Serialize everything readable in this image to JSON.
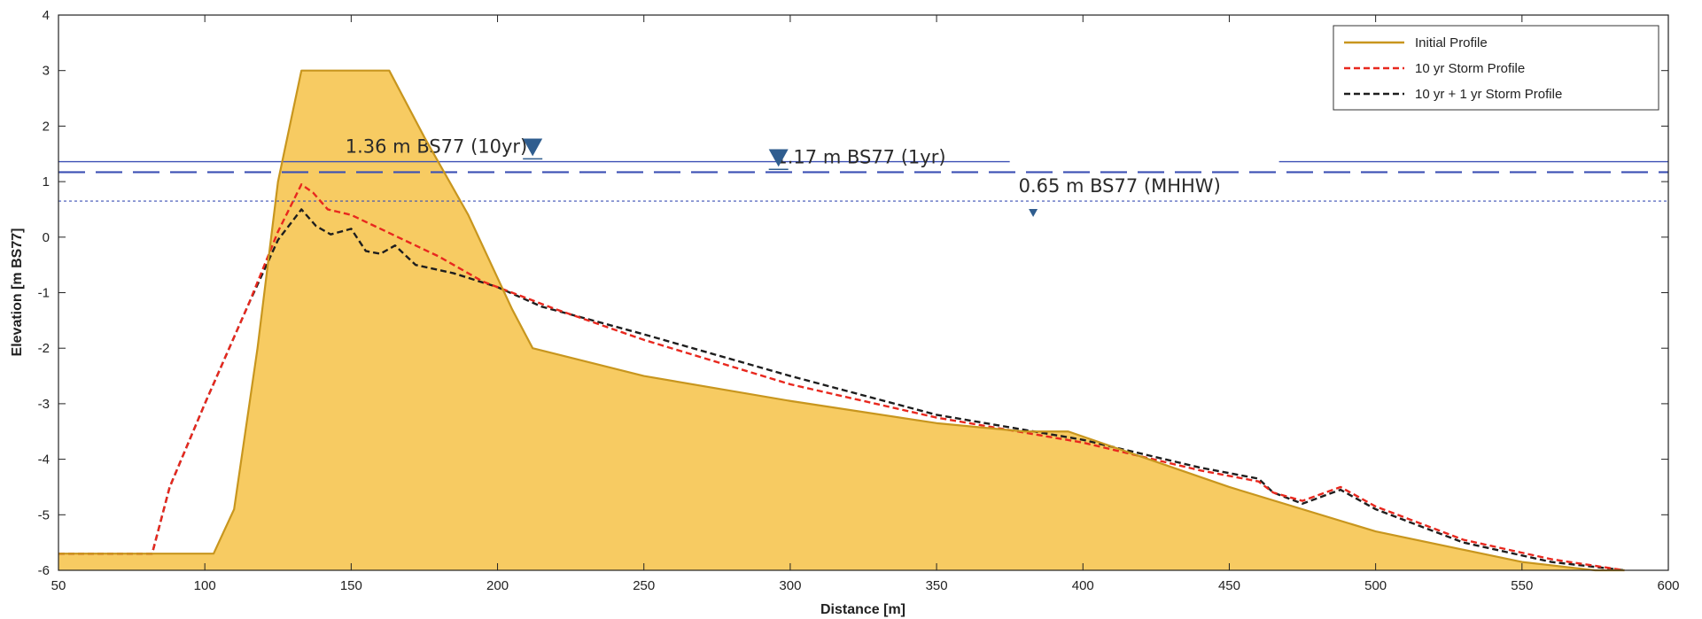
{
  "chart_data": {
    "type": "area",
    "xlabel": "Distance [m]",
    "ylabel": "Elevation [m BS77]",
    "xlim": [
      50,
      600
    ],
    "ylim": [
      -6,
      4
    ],
    "xticks": [
      50,
      100,
      150,
      200,
      250,
      300,
      350,
      400,
      450,
      500,
      550,
      600
    ],
    "yticks": [
      -6,
      -5,
      -4,
      -3,
      -2,
      -1,
      0,
      1,
      2,
      3,
      4
    ],
    "grid": false,
    "legend_position": "top-right",
    "colors": {
      "fill": "#f7c85a",
      "initial": "#c8961e",
      "storm10": "#e8281e",
      "storm11": "#1e1e1e",
      "level": "#3c50b4",
      "marker": "#2f5d8f"
    },
    "series": [
      {
        "name": "Initial Profile",
        "style": "solid",
        "x": [
          50,
          103,
          110,
          118,
          125,
          133,
          163,
          175,
          190,
          205,
          212,
          250,
          300,
          350,
          380,
          395,
          450,
          500,
          550,
          575,
          585
        ],
        "y": [
          -5.7,
          -5.7,
          -4.9,
          -2.0,
          1.0,
          3.0,
          3.0,
          1.8,
          0.4,
          -1.3,
          -2.0,
          -2.5,
          -2.95,
          -3.35,
          -3.5,
          -3.5,
          -4.5,
          -5.3,
          -5.85,
          -6.0,
          -6.0
        ]
      },
      {
        "name": "10 yr Storm Profile",
        "style": "dashed",
        "x": [
          50,
          82,
          88,
          100,
          115,
          125,
          133,
          137,
          142,
          150,
          158,
          168,
          180,
          195,
          220,
          250,
          300,
          350,
          400,
          440,
          460,
          465,
          475,
          488,
          500,
          530,
          560,
          585
        ],
        "y": [
          -5.7,
          -5.7,
          -4.5,
          -3.0,
          -1.2,
          0.1,
          0.95,
          0.8,
          0.5,
          0.4,
          0.2,
          -0.05,
          -0.35,
          -0.8,
          -1.3,
          -1.85,
          -2.65,
          -3.25,
          -3.7,
          -4.2,
          -4.4,
          -4.6,
          -4.75,
          -4.5,
          -4.85,
          -5.45,
          -5.8,
          -6.0
        ]
      },
      {
        "name": "10 yr + 1 yr Storm Profile",
        "style": "dashed",
        "x": [
          50,
          82,
          88,
          100,
          115,
          125,
          133,
          138,
          143,
          150,
          155,
          160,
          165,
          172,
          185,
          200,
          215,
          250,
          300,
          350,
          400,
          440,
          460,
          465,
          475,
          488,
          500,
          530,
          560,
          585
        ],
        "y": [
          -5.7,
          -5.7,
          -4.5,
          -3.0,
          -1.2,
          -0.05,
          0.5,
          0.2,
          0.05,
          0.15,
          -0.25,
          -0.3,
          -0.15,
          -0.5,
          -0.65,
          -0.9,
          -1.25,
          -1.75,
          -2.5,
          -3.2,
          -3.65,
          -4.15,
          -4.35,
          -4.6,
          -4.8,
          -4.55,
          -4.9,
          -5.5,
          -5.85,
          -6.0
        ]
      }
    ],
    "levels": [
      {
        "name": "10yr",
        "value": 1.36,
        "label": "1.36 m BS77 (10yr)",
        "style": "solid",
        "label_x": 148,
        "marker_x": 212
      },
      {
        "name": "1yr",
        "value": 1.17,
        "label": "1.17 m BS77 (1yr)",
        "style": "longdash",
        "label_x": 295,
        "marker_x": 296
      },
      {
        "name": "MHHW",
        "value": 0.65,
        "label": "0.65 m BS77 (MHHW)",
        "style": "dotted",
        "label_x": 378,
        "marker_x": 383
      }
    ]
  }
}
